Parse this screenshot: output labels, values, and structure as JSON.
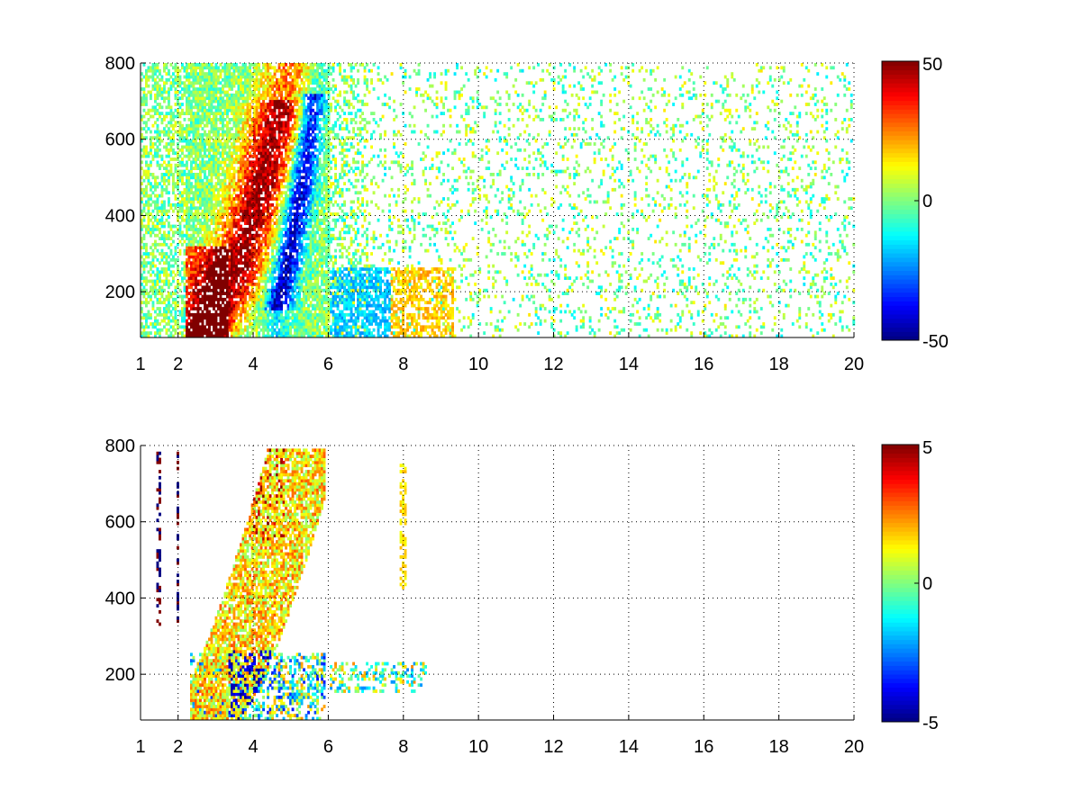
{
  "chart_data": [
    {
      "type": "heatmap",
      "title": "",
      "xlabel": "",
      "ylabel": "",
      "xlim": [
        1,
        20
      ],
      "ylim": [
        80,
        800
      ],
      "xticks": [
        1,
        2,
        4,
        6,
        8,
        10,
        12,
        14,
        16,
        18,
        20
      ],
      "yticks": [
        200,
        400,
        600,
        800
      ],
      "grid": true,
      "colormap": "jet",
      "colorbar": {
        "range": [
          -50,
          50
        ],
        "ticks": [
          -50,
          0,
          50
        ]
      },
      "structure": {
        "positive_band": "red-orange ridge from about (2.5, 200) rising to about (5, 750)",
        "negative_band": "blue ridge from about (4.5, 250) rising to about (5.6, 650)",
        "sparse_region": "scattered near-zero values for x > 6"
      }
    },
    {
      "type": "heatmap",
      "title": "",
      "xlabel": "",
      "ylabel": "",
      "xlim": [
        1,
        20
      ],
      "ylim": [
        80,
        800
      ],
      "xticks": [
        1,
        2,
        4,
        6,
        8,
        10,
        12,
        14,
        16,
        18,
        20
      ],
      "yticks": [
        200,
        400,
        600,
        800
      ],
      "grid": true,
      "colormap": "jet",
      "colorbar": {
        "range": [
          -5,
          5
        ],
        "ticks": [
          -5,
          0,
          5
        ]
      },
      "structure": {
        "data_region": "values mostly between x = 2 and x = 6, small patches near x = 6.5 to 8.5",
        "positive_band": "yellow-orange band from about (2.5, 250) rising to about (5.5, 780)",
        "negative_band": "blue patches near y = 150 to 250 between x = 3.5 and 5.5"
      }
    }
  ]
}
